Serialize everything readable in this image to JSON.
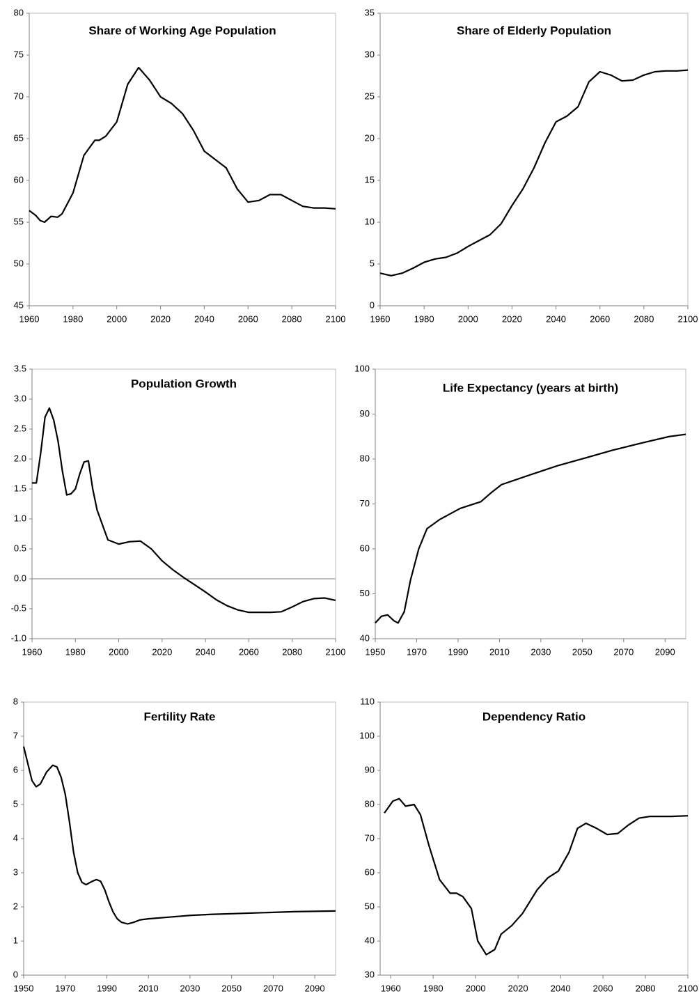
{
  "chart_data": [
    {
      "type": "line",
      "title": "Share of Working Age Population",
      "color": "#000000",
      "x": [
        1960,
        1963,
        1965,
        1967,
        1970,
        1973,
        1975,
        1980,
        1985,
        1990,
        1992,
        1995,
        2000,
        2005,
        2010,
        2015,
        2020,
        2025,
        2030,
        2035,
        2040,
        2045,
        2050,
        2055,
        2060,
        2065,
        2070,
        2075,
        2080,
        2085,
        2090,
        2095,
        2100
      ],
      "values": [
        56.4,
        55.8,
        55.2,
        55.0,
        55.7,
        55.6,
        56.0,
        58.5,
        63.0,
        64.8,
        64.8,
        65.3,
        67.0,
        71.5,
        73.5,
        72.0,
        70.0,
        69.2,
        68.0,
        66.0,
        63.5,
        62.5,
        61.5,
        59.0,
        57.4,
        57.6,
        58.3,
        58.3,
        57.6,
        56.9,
        56.7,
        56.7,
        56.6
      ],
      "xlim": [
        1960,
        2100
      ],
      "xticks": [
        1960,
        1980,
        2000,
        2020,
        2040,
        2060,
        2080,
        2100
      ],
      "ylim": [
        45,
        80
      ],
      "yticks": [
        45,
        50,
        55,
        60,
        65,
        70,
        75,
        80
      ]
    },
    {
      "type": "line",
      "title": "Share of Elderly Population",
      "color": "#000000",
      "x": [
        1960,
        1965,
        1970,
        1975,
        1980,
        1985,
        1990,
        1995,
        2000,
        2005,
        2010,
        2015,
        2020,
        2025,
        2030,
        2035,
        2040,
        2045,
        2050,
        2055,
        2060,
        2065,
        2070,
        2075,
        2080,
        2085,
        2090,
        2095,
        2100
      ],
      "values": [
        3.9,
        3.6,
        3.9,
        4.5,
        5.2,
        5.6,
        5.8,
        6.3,
        7.1,
        7.8,
        8.5,
        9.8,
        12.0,
        14.0,
        16.5,
        19.5,
        22.0,
        22.7,
        23.8,
        26.8,
        28.0,
        27.6,
        26.9,
        27.0,
        27.6,
        28.0,
        28.1,
        28.1,
        28.2
      ],
      "xlim": [
        1960,
        2100
      ],
      "xticks": [
        1960,
        1980,
        2000,
        2020,
        2040,
        2060,
        2080,
        2100
      ],
      "ylim": [
        0,
        35
      ],
      "yticks": [
        0,
        5,
        10,
        15,
        20,
        25,
        30,
        35
      ]
    },
    {
      "type": "line",
      "title": "Population Growth",
      "color": "#000000",
      "zero_line": true,
      "x": [
        1960,
        1962,
        1964,
        1966,
        1968,
        1970,
        1972,
        1974,
        1976,
        1978,
        1980,
        1982,
        1984,
        1986,
        1988,
        1990,
        1995,
        2000,
        2005,
        2010,
        2015,
        2020,
        2025,
        2030,
        2035,
        2040,
        2045,
        2050,
        2055,
        2060,
        2065,
        2070,
        2075,
        2080,
        2085,
        2090,
        2095,
        2100
      ],
      "values": [
        1.6,
        1.6,
        2.1,
        2.7,
        2.85,
        2.65,
        2.3,
        1.8,
        1.4,
        1.42,
        1.5,
        1.75,
        1.95,
        1.97,
        1.5,
        1.15,
        0.65,
        0.58,
        0.62,
        0.63,
        0.5,
        0.3,
        0.15,
        0.02,
        -0.1,
        -0.22,
        -0.35,
        -0.45,
        -0.52,
        -0.56,
        -0.56,
        -0.56,
        -0.55,
        -0.47,
        -0.38,
        -0.33,
        -0.32,
        -0.36
      ],
      "xlim": [
        1960,
        2100
      ],
      "xticks": [
        1960,
        1980,
        2000,
        2020,
        2040,
        2060,
        2080,
        2100
      ],
      "ylim": [
        -1,
        3.5
      ],
      "yticks": [
        {
          "value": -1,
          "label": "-1.0"
        },
        -0.5,
        {
          "value": 0,
          "label": "0.0"
        },
        0.5,
        {
          "value": 1,
          "label": "1.0"
        },
        1.5,
        {
          "value": 2,
          "label": "2.0"
        },
        2.5,
        {
          "value": 3,
          "label": "3.0"
        },
        3.5
      ]
    },
    {
      "type": "line",
      "title": "Life Expectancy (years at birth)",
      "color": "#000000",
      "x": [
        1950,
        1953,
        1956,
        1959,
        1961,
        1964,
        1967,
        1971,
        1975,
        1981,
        1991,
        2001,
        2006,
        2011,
        2025,
        2038,
        2052,
        2065,
        2079,
        2092,
        2100
      ],
      "values": [
        43.5,
        45,
        45.3,
        44,
        43.5,
        46,
        53,
        60,
        64.5,
        66.5,
        69,
        70.5,
        72.5,
        74.3,
        76.5,
        78.5,
        80.3,
        82,
        83.6,
        85,
        85.5
      ],
      "xlim": [
        1950,
        2100
      ],
      "xticks": [
        1950,
        1970,
        1990,
        2010,
        2030,
        2050,
        2070,
        2090
      ],
      "ylim": [
        40,
        100
      ],
      "yticks": [
        40,
        50,
        60,
        70,
        80,
        90,
        100
      ]
    },
    {
      "type": "line",
      "title": "Fertility Rate",
      "color": "#000000",
      "x": [
        1950,
        1952,
        1954,
        1956,
        1958,
        1961,
        1964,
        1966,
        1968,
        1970,
        1972,
        1974,
        1976,
        1978,
        1980,
        1983,
        1985,
        1987,
        1989,
        1991,
        1993,
        1995,
        1997,
        2000,
        2003,
        2006,
        2010,
        2020,
        2030,
        2040,
        2050,
        2060,
        2070,
        2080,
        2090,
        2100
      ],
      "values": [
        6.7,
        6.2,
        5.7,
        5.52,
        5.6,
        5.95,
        6.15,
        6.1,
        5.8,
        5.3,
        4.5,
        3.6,
        3.0,
        2.72,
        2.65,
        2.75,
        2.8,
        2.75,
        2.5,
        2.15,
        1.85,
        1.65,
        1.55,
        1.5,
        1.55,
        1.62,
        1.65,
        1.7,
        1.75,
        1.78,
        1.8,
        1.82,
        1.84,
        1.86,
        1.87,
        1.88
      ],
      "xlim": [
        1950,
        2100
      ],
      "xticks": [
        1950,
        1970,
        1990,
        2010,
        2030,
        2050,
        2070,
        2090
      ],
      "ylim": [
        0,
        8
      ],
      "yticks": [
        0,
        1,
        2,
        3,
        4,
        5,
        6,
        7,
        8
      ]
    },
    {
      "type": "line",
      "title": "Dependency Ratio",
      "color": "#000000",
      "x": [
        1957,
        1961,
        1964,
        1967,
        1971,
        1974,
        1978,
        1983,
        1988,
        1991,
        1994,
        1998,
        2001,
        2005,
        2009,
        2012,
        2017,
        2022,
        2029,
        2034,
        2039,
        2044,
        2048,
        2052,
        2057,
        2062,
        2067,
        2072,
        2077,
        2082,
        2092,
        2100
      ],
      "values": [
        77.5,
        81,
        81.7,
        79.5,
        80,
        77,
        68,
        58,
        54,
        54,
        53,
        49.5,
        40,
        36,
        37.5,
        42,
        44.5,
        48,
        55,
        58.5,
        60.5,
        66,
        73,
        74.5,
        73,
        71.2,
        71.5,
        74,
        76,
        76.5,
        76.5,
        76.7
      ],
      "xlim": [
        1955,
        2100
      ],
      "xticks": [
        1960,
        1980,
        2000,
        2020,
        2040,
        2060,
        2080,
        2100
      ],
      "ylim": [
        30,
        110
      ],
      "yticks": [
        30,
        40,
        50,
        60,
        70,
        80,
        90,
        100,
        110
      ]
    }
  ]
}
